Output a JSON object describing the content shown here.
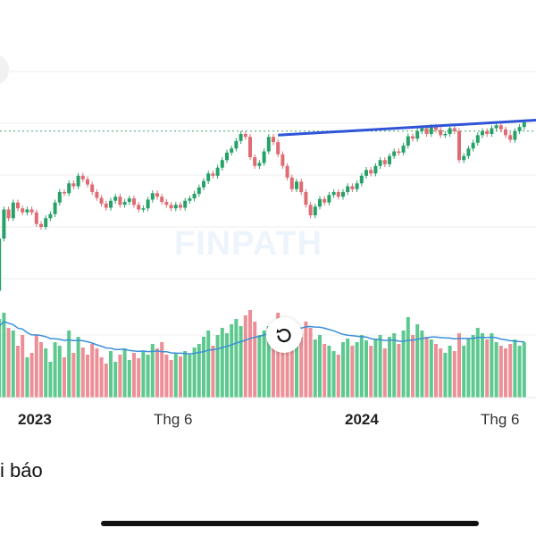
{
  "watermark": {
    "text": "FINPATH"
  },
  "indicator_label": "i báo",
  "x_axis": {
    "labels": [
      "2023",
      "Thg 6",
      "2024",
      "Thg 6"
    ]
  },
  "icons": {
    "reset": "rotate-ccw-icon"
  },
  "colors": {
    "up": "#26a269",
    "down": "#e06b73",
    "up_volume": "#5dc98f",
    "down_volume": "#ec8f97",
    "trendline": "#2f54d8",
    "volume_ma": "#3b8fd9",
    "reference_line": "#3aa56a"
  },
  "chart_data": {
    "type": "candlestick",
    "candles": [
      {
        "o": 40,
        "c": 30,
        "v": 72
      },
      {
        "o": 30,
        "c": 120,
        "v": 88
      },
      {
        "o": 120,
        "c": 170,
        "v": 95
      },
      {
        "o": 170,
        "c": 155,
        "v": 78
      },
      {
        "o": 155,
        "c": 182,
        "v": 75
      },
      {
        "o": 182,
        "c": 172,
        "v": 58
      },
      {
        "o": 172,
        "c": 165,
        "v": 70
      },
      {
        "o": 165,
        "c": 170,
        "v": 45
      },
      {
        "o": 170,
        "c": 165,
        "v": 50
      },
      {
        "o": 165,
        "c": 145,
        "v": 70
      },
      {
        "o": 145,
        "c": 140,
        "v": 62
      },
      {
        "o": 140,
        "c": 155,
        "v": 55
      },
      {
        "o": 155,
        "c": 162,
        "v": 40
      },
      {
        "o": 162,
        "c": 182,
        "v": 62
      },
      {
        "o": 182,
        "c": 200,
        "v": 58
      },
      {
        "o": 200,
        "c": 198,
        "v": 45
      },
      {
        "o": 198,
        "c": 215,
        "v": 75
      },
      {
        "o": 215,
        "c": 210,
        "v": 50
      },
      {
        "o": 210,
        "c": 228,
        "v": 68
      },
      {
        "o": 228,
        "c": 222,
        "v": 56
      },
      {
        "o": 222,
        "c": 213,
        "v": 48
      },
      {
        "o": 213,
        "c": 200,
        "v": 60
      },
      {
        "o": 200,
        "c": 190,
        "v": 55
      },
      {
        "o": 190,
        "c": 180,
        "v": 45
      },
      {
        "o": 180,
        "c": 173,
        "v": 38
      },
      {
        "o": 173,
        "c": 185,
        "v": 52
      },
      {
        "o": 185,
        "c": 192,
        "v": 40
      },
      {
        "o": 192,
        "c": 178,
        "v": 48
      },
      {
        "o": 178,
        "c": 183,
        "v": 55
      },
      {
        "o": 183,
        "c": 189,
        "v": 42
      },
      {
        "o": 189,
        "c": 178,
        "v": 50
      },
      {
        "o": 178,
        "c": 170,
        "v": 44
      },
      {
        "o": 170,
        "c": 172,
        "v": 52
      },
      {
        "o": 172,
        "c": 187,
        "v": 48
      },
      {
        "o": 187,
        "c": 198,
        "v": 60
      },
      {
        "o": 198,
        "c": 192,
        "v": 55
      },
      {
        "o": 192,
        "c": 183,
        "v": 62
      },
      {
        "o": 183,
        "c": 178,
        "v": 48
      },
      {
        "o": 178,
        "c": 172,
        "v": 42
      },
      {
        "o": 172,
        "c": 178,
        "v": 50
      },
      {
        "o": 178,
        "c": 173,
        "v": 46
      },
      {
        "o": 173,
        "c": 185,
        "v": 52
      },
      {
        "o": 185,
        "c": 189,
        "v": 48
      },
      {
        "o": 189,
        "c": 197,
        "v": 56
      },
      {
        "o": 197,
        "c": 208,
        "v": 60
      },
      {
        "o": 208,
        "c": 219,
        "v": 68
      },
      {
        "o": 219,
        "c": 232,
        "v": 75
      },
      {
        "o": 232,
        "c": 228,
        "v": 58
      },
      {
        "o": 228,
        "c": 242,
        "v": 70
      },
      {
        "o": 242,
        "c": 255,
        "v": 78
      },
      {
        "o": 255,
        "c": 268,
        "v": 72
      },
      {
        "o": 268,
        "c": 275,
        "v": 82
      },
      {
        "o": 275,
        "c": 288,
        "v": 88
      },
      {
        "o": 288,
        "c": 300,
        "v": 80
      },
      {
        "o": 300,
        "c": 295,
        "v": 92
      },
      {
        "o": 295,
        "c": 260,
        "v": 98
      },
      {
        "o": 260,
        "c": 245,
        "v": 85
      },
      {
        "o": 245,
        "c": 250,
        "v": 70
      },
      {
        "o": 250,
        "c": 270,
        "v": 75
      },
      {
        "o": 270,
        "c": 295,
        "v": 80
      },
      {
        "o": 295,
        "c": 286,
        "v": 70
      },
      {
        "o": 286,
        "c": 265,
        "v": 95
      },
      {
        "o": 265,
        "c": 245,
        "v": 82
      },
      {
        "o": 245,
        "c": 225,
        "v": 78
      },
      {
        "o": 225,
        "c": 205,
        "v": 72
      },
      {
        "o": 205,
        "c": 218,
        "v": 62
      },
      {
        "o": 218,
        "c": 200,
        "v": 68
      },
      {
        "o": 200,
        "c": 178,
        "v": 85
      },
      {
        "o": 178,
        "c": 160,
        "v": 78
      },
      {
        "o": 160,
        "c": 175,
        "v": 65
      },
      {
        "o": 175,
        "c": 188,
        "v": 70
      },
      {
        "o": 188,
        "c": 182,
        "v": 60
      },
      {
        "o": 182,
        "c": 195,
        "v": 58
      },
      {
        "o": 195,
        "c": 200,
        "v": 52
      },
      {
        "o": 200,
        "c": 192,
        "v": 48
      },
      {
        "o": 192,
        "c": 200,
        "v": 62
      },
      {
        "o": 200,
        "c": 210,
        "v": 66
      },
      {
        "o": 210,
        "c": 205,
        "v": 58
      },
      {
        "o": 205,
        "c": 215,
        "v": 62
      },
      {
        "o": 215,
        "c": 228,
        "v": 70
      },
      {
        "o": 228,
        "c": 238,
        "v": 64
      },
      {
        "o": 238,
        "c": 232,
        "v": 58
      },
      {
        "o": 232,
        "c": 245,
        "v": 66
      },
      {
        "o": 245,
        "c": 255,
        "v": 70
      },
      {
        "o": 255,
        "c": 248,
        "v": 55
      },
      {
        "o": 248,
        "c": 262,
        "v": 68
      },
      {
        "o": 262,
        "c": 270,
        "v": 72
      },
      {
        "o": 270,
        "c": 268,
        "v": 60
      },
      {
        "o": 268,
        "c": 280,
        "v": 75
      },
      {
        "o": 280,
        "c": 296,
        "v": 90
      },
      {
        "o": 296,
        "c": 292,
        "v": 70
      },
      {
        "o": 292,
        "c": 305,
        "v": 82
      },
      {
        "o": 305,
        "c": 310,
        "v": 75
      },
      {
        "o": 310,
        "c": 300,
        "v": 68
      },
      {
        "o": 300,
        "c": 312,
        "v": 65
      },
      {
        "o": 312,
        "c": 307,
        "v": 60
      },
      {
        "o": 307,
        "c": 298,
        "v": 55
      },
      {
        "o": 298,
        "c": 300,
        "v": 50
      },
      {
        "o": 300,
        "c": 310,
        "v": 58
      },
      {
        "o": 310,
        "c": 305,
        "v": 52
      },
      {
        "o": 305,
        "c": 255,
        "v": 72
      },
      {
        "o": 255,
        "c": 262,
        "v": 58
      },
      {
        "o": 262,
        "c": 275,
        "v": 66
      },
      {
        "o": 275,
        "c": 285,
        "v": 70
      },
      {
        "o": 285,
        "c": 298,
        "v": 78
      },
      {
        "o": 298,
        "c": 305,
        "v": 72
      },
      {
        "o": 305,
        "c": 300,
        "v": 65
      },
      {
        "o": 300,
        "c": 310,
        "v": 72
      },
      {
        "o": 310,
        "c": 315,
        "v": 62
      },
      {
        "o": 315,
        "c": 308,
        "v": 58
      },
      {
        "o": 308,
        "c": 298,
        "v": 55
      },
      {
        "o": 298,
        "c": 290,
        "v": 60
      },
      {
        "o": 290,
        "c": 305,
        "v": 65
      },
      {
        "o": 305,
        "c": 312,
        "v": 58
      },
      {
        "o": 312,
        "c": 320,
        "v": 62
      }
    ],
    "trendline": [
      {
        "index": 61,
        "price": 298
      },
      {
        "index": 119,
        "price": 325
      }
    ],
    "reference_level": 305
  }
}
